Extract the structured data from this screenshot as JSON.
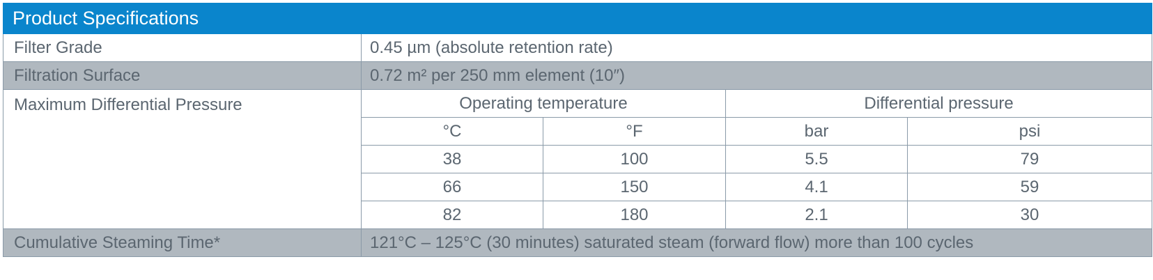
{
  "title": "Product Specifications",
  "rows": {
    "filter_grade": {
      "label": "Filter Grade",
      "value": "0.45 µm (absolute retention rate)"
    },
    "filtration_surface": {
      "label": "Filtration Surface",
      "value": "0.72 m² per 250 mm element (10″)"
    },
    "max_diff_pressure": {
      "label": "Maximum Differential Pressure",
      "group_headers": [
        "Operating temperature",
        "Differential pressure"
      ],
      "unit_headers": [
        "°C",
        "°F",
        "bar",
        "psi"
      ],
      "data": [
        [
          "38",
          "100",
          "5.5",
          "79"
        ],
        [
          "66",
          "150",
          "4.1",
          "59"
        ],
        [
          "82",
          "180",
          "2.1",
          "30"
        ]
      ]
    },
    "steaming_time": {
      "label": "Cumulative Steaming Time*",
      "value": "121°C – 125°C (30 minutes) saturated steam (forward flow) more than 100 cycles"
    }
  },
  "colors": {
    "header_bg": "#0a85cc",
    "shaded_row_bg": "#b0b8bf",
    "text": "#5b6670",
    "border": "#8a9aa8"
  }
}
